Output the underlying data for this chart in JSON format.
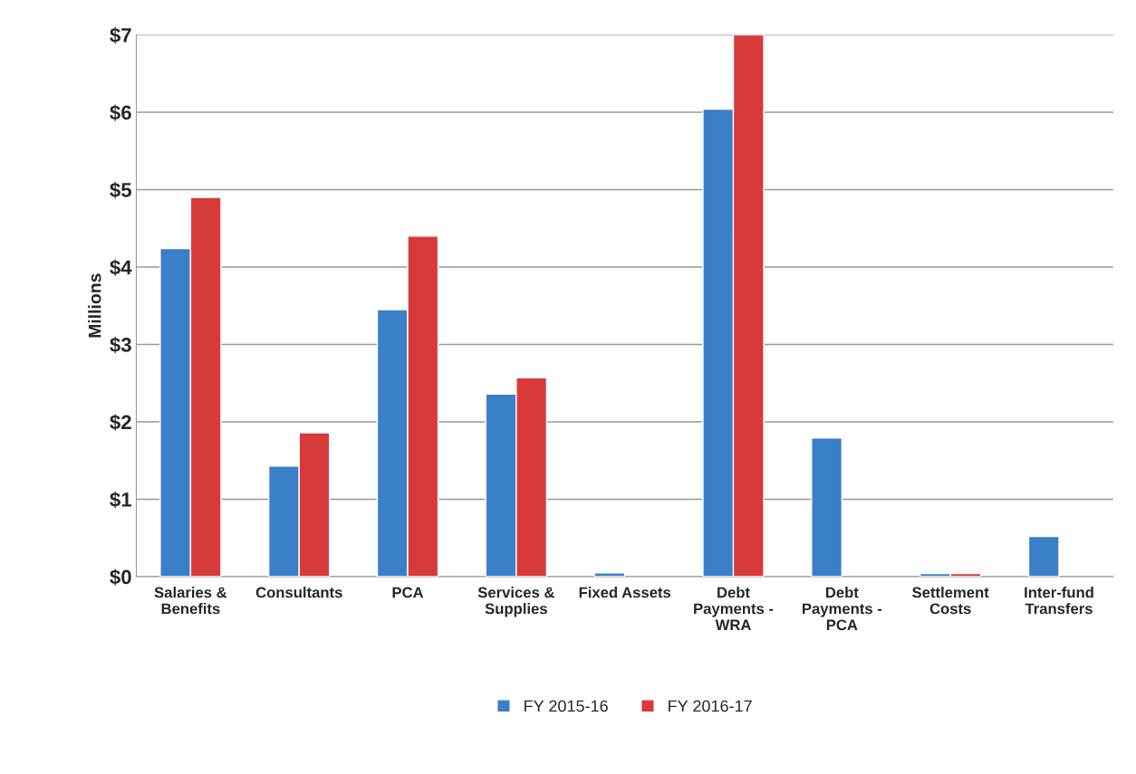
{
  "chart_data": {
    "type": "bar",
    "ylabel": "Millions",
    "categories": [
      "Salaries &\nBenefits",
      "Consultants",
      "PCA",
      "Services &\nSupplies",
      "Fixed Assets",
      "Debt\nPayments -\nWRA",
      "Debt\nPayments -\nPCA",
      "Settlement\nCosts",
      "Inter-fund\nTransfers"
    ],
    "series": [
      {
        "name": "FY 2015-16",
        "color": "#3a80c8",
        "values": [
          4.24,
          1.43,
          3.45,
          2.36,
          0.05,
          6.04,
          1.79,
          0.04,
          0.52
        ]
      },
      {
        "name": "FY 2016-17",
        "color": "#d83a3c",
        "values": [
          4.9,
          1.86,
          4.4,
          2.57,
          null,
          7.0,
          null,
          0.04,
          null
        ]
      }
    ],
    "ylim": [
      0,
      7
    ],
    "yticks": [
      {
        "value": 0,
        "label": "$0"
      },
      {
        "value": 1,
        "label": "$1"
      },
      {
        "value": 2,
        "label": "$2"
      },
      {
        "value": 3,
        "label": "$3"
      },
      {
        "value": 4,
        "label": "$4"
      },
      {
        "value": 5,
        "label": "$5"
      },
      {
        "value": 6,
        "label": "$6"
      },
      {
        "value": 7,
        "label": "$7"
      }
    ],
    "grid": "y",
    "legend": "bottom"
  }
}
